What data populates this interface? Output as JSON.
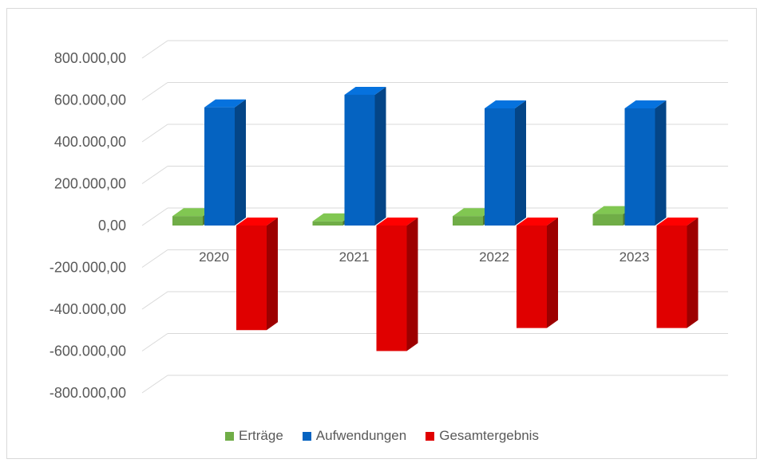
{
  "chart_data": {
    "type": "bar",
    "categories": [
      "2020",
      "2021",
      "2022",
      "2023"
    ],
    "ylim": [
      -800000,
      800000
    ],
    "y_ticks": [
      "800.000,00",
      "600.000,00",
      "400.000,00",
      "200.000,00",
      "0,00",
      "-200.000,00",
      "-400.000,00",
      "-600.000,00",
      "-800.000,00"
    ],
    "y_tick_values": [
      800000,
      600000,
      400000,
      200000,
      0,
      -200000,
      -400000,
      -600000,
      -800000
    ],
    "grid": true,
    "legend_position": "bottom",
    "series": [
      {
        "name": "Erträge",
        "color": "#70ad47",
        "values": [
          45000,
          20000,
          45000,
          55000
        ]
      },
      {
        "name": "Aufwendungen",
        "color": "#0563c1",
        "values": [
          565000,
          625000,
          560000,
          560000
        ]
      },
      {
        "name": "Gesamtergebnis",
        "color": "#e00000",
        "values": [
          -500000,
          -600000,
          -490000,
          -490000
        ]
      }
    ]
  }
}
